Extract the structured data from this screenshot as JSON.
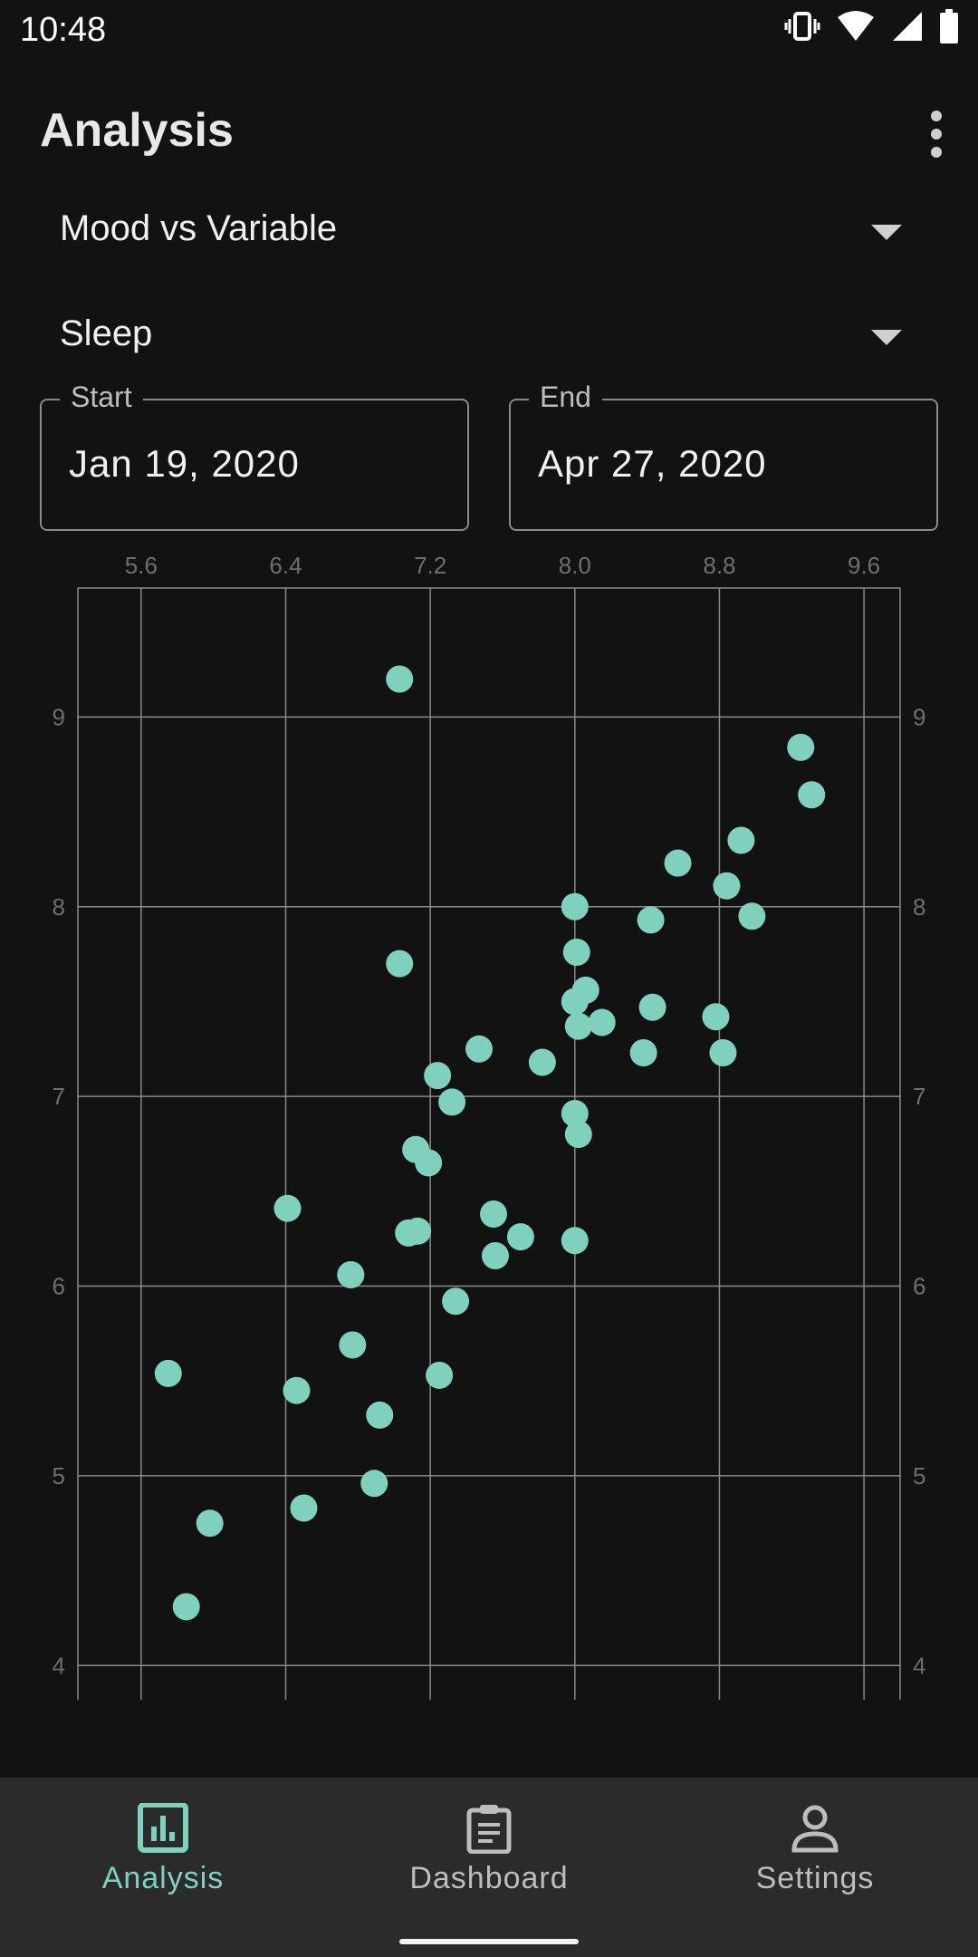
{
  "status_bar": {
    "time": "10:48",
    "icons": [
      "vibrate-icon",
      "wifi-icon",
      "signal-icon",
      "battery-icon"
    ]
  },
  "app_bar": {
    "title": "Analysis",
    "menu_icon": "more-vert-icon"
  },
  "selectors": {
    "analysis_type": "Mood vs Variable",
    "variable": "Sleep"
  },
  "date_range": {
    "start_label": "Start",
    "start_value": "Jan 19, 2020",
    "end_label": "End",
    "end_value": "Apr 27, 2020"
  },
  "colors": {
    "accent": "#7fd1bd",
    "background": "#121212",
    "nav_background": "#2b2b2b"
  },
  "chart_data": {
    "type": "scatter",
    "title": "",
    "xlabel": "",
    "ylabel": "",
    "xlim": [
      5.25,
      9.8
    ],
    "ylim": [
      3.82,
      9.68
    ],
    "x_ticks": [
      "5.6",
      "6.4",
      "7.2",
      "8.0",
      "8.8",
      "9.6"
    ],
    "y_ticks": [
      "4",
      "5",
      "6",
      "7",
      "8",
      "9"
    ],
    "grid": true,
    "legend": "none",
    "series": [
      {
        "x": [
          7.03,
          9.25,
          9.31,
          8.92,
          8.57,
          8.84,
          8.98,
          8.0,
          8.42,
          8.01,
          7.03,
          8.06,
          8.0,
          8.43,
          8.78,
          8.02,
          8.15,
          7.47,
          8.38,
          8.82,
          7.82,
          7.24,
          7.32,
          8.0,
          8.02,
          7.12,
          7.19,
          6.41,
          7.55,
          7.08,
          7.13,
          7.7,
          8.0,
          7.56,
          6.76,
          7.34,
          6.77,
          5.75,
          6.46,
          7.25,
          6.92,
          5.98,
          6.89,
          6.5,
          5.85
        ],
        "y": [
          9.2,
          8.84,
          8.59,
          8.35,
          8.23,
          8.11,
          7.95,
          8.0,
          7.93,
          7.76,
          7.7,
          7.56,
          7.5,
          7.47,
          7.42,
          7.37,
          7.39,
          7.25,
          7.23,
          7.23,
          7.18,
          7.11,
          6.97,
          6.91,
          6.8,
          6.72,
          6.65,
          6.41,
          6.38,
          6.28,
          6.29,
          6.26,
          6.24,
          6.16,
          6.06,
          5.92,
          5.69,
          5.54,
          5.45,
          5.53,
          5.32,
          4.75,
          4.96,
          4.83,
          4.31
        ]
      }
    ]
  },
  "bottom_nav": {
    "items": [
      {
        "label": "Analysis",
        "icon": "bar-chart-icon",
        "active": true
      },
      {
        "label": "Dashboard",
        "icon": "clipboard-icon",
        "active": false
      },
      {
        "label": "Settings",
        "icon": "person-icon",
        "active": false
      }
    ]
  }
}
